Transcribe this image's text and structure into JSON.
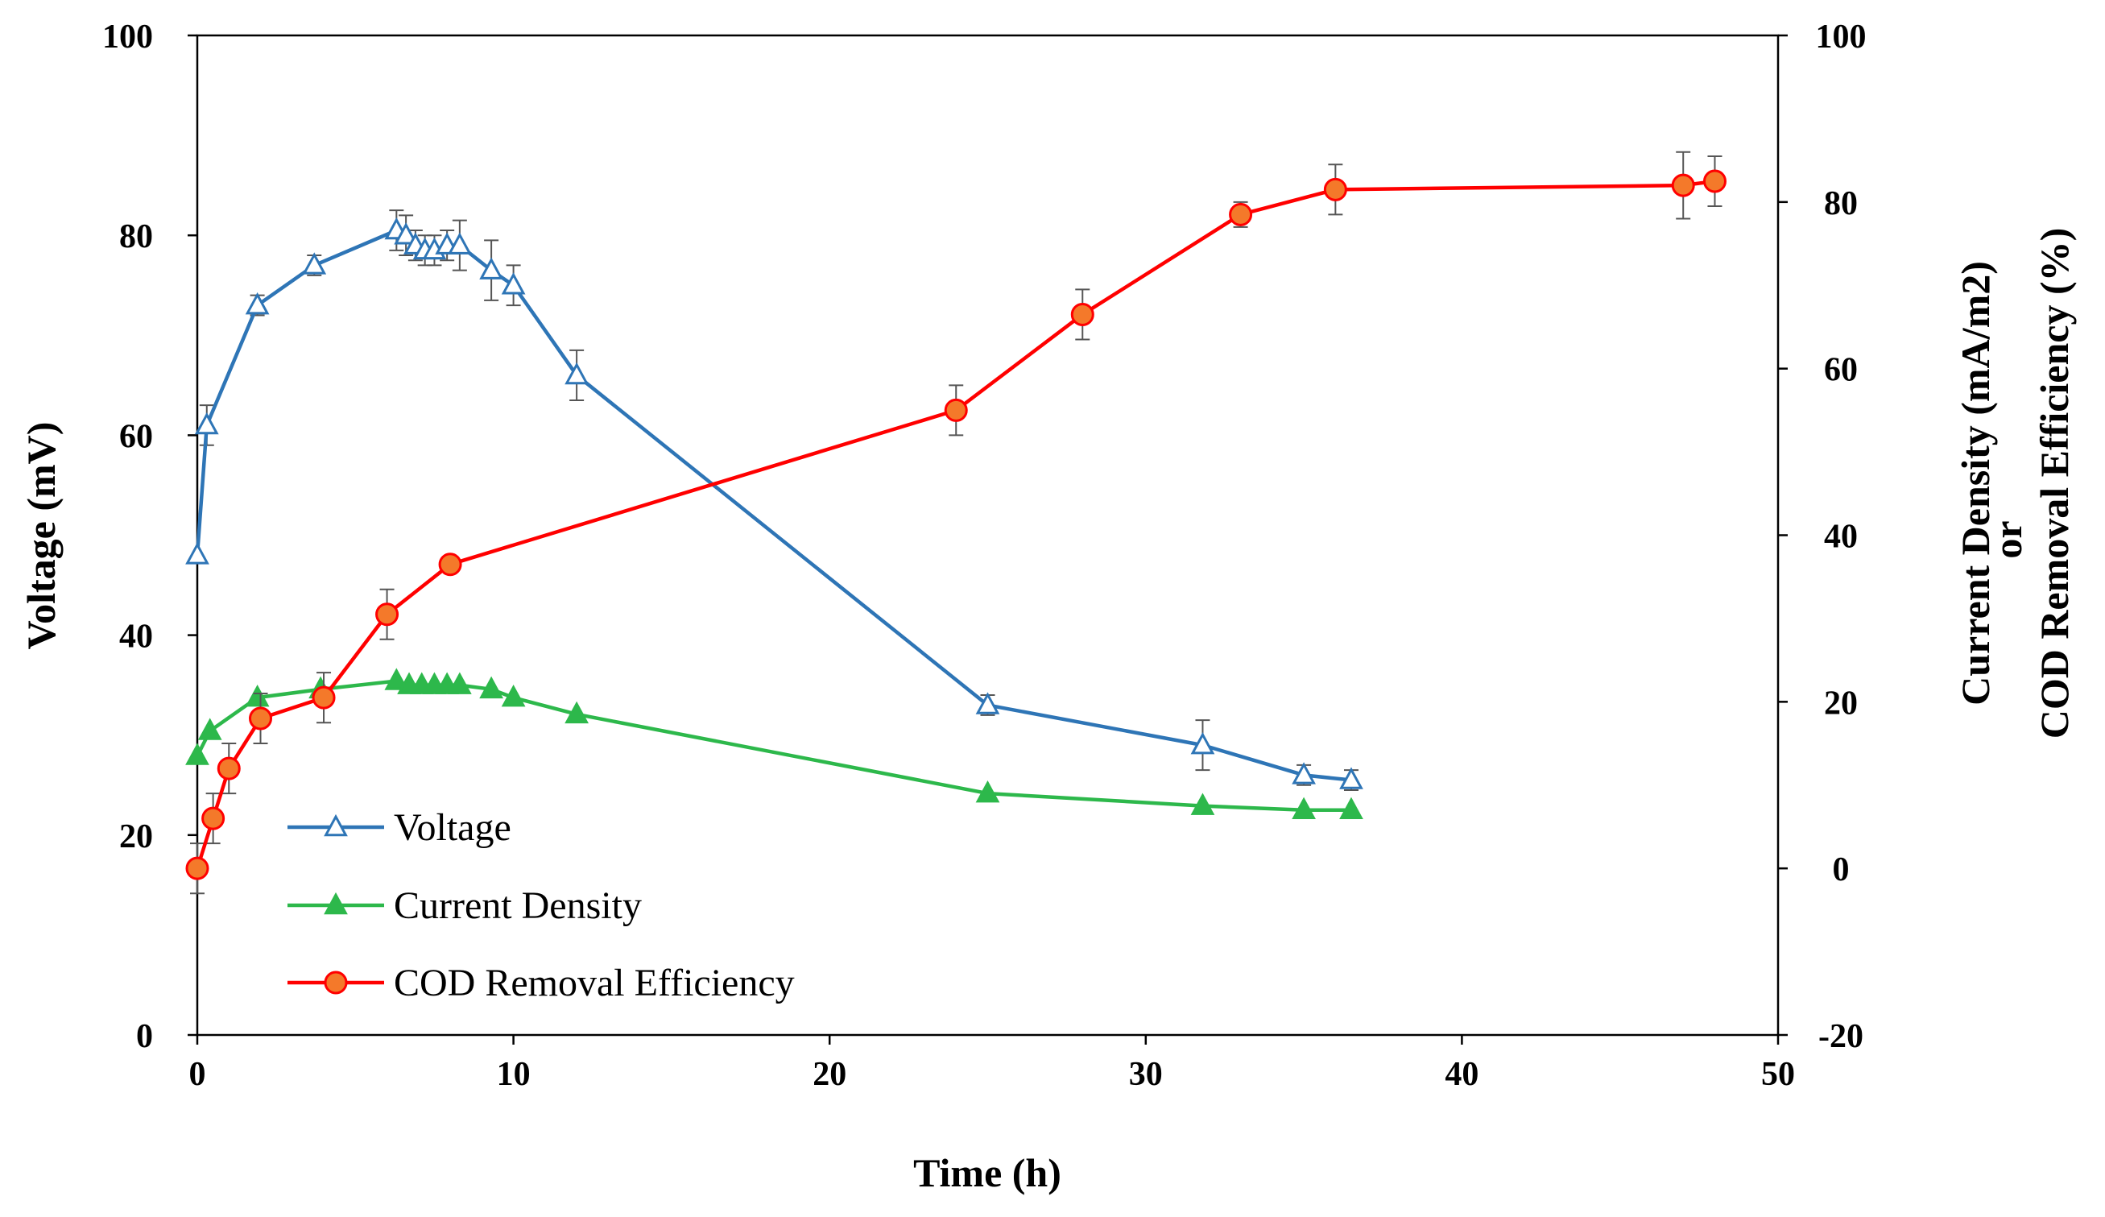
{
  "chart_data": {
    "type": "line",
    "xlabel": "Time (h)",
    "ylabel_left": "Voltage (mV)",
    "ylabel_right_line1": "Current Density (mA/m2)",
    "ylabel_right_line2": "or",
    "ylabel_right_line3": "COD Removal Efficiency (%)",
    "xlim": [
      0,
      50
    ],
    "ylim_left": [
      0,
      100
    ],
    "ylim_right": [
      -20,
      100
    ],
    "x_ticks": [
      0,
      10,
      20,
      30,
      40,
      50
    ],
    "y_left_ticks": [
      0,
      20,
      40,
      60,
      80,
      100
    ],
    "y_right_ticks": [
      -20,
      0,
      20,
      40,
      60,
      80,
      100
    ],
    "legend_position": "bottom-left",
    "series": [
      {
        "name": "Voltage",
        "axis": "left",
        "color": "#2E75B6",
        "marker": "triangle-open",
        "x": [
          0,
          0.3,
          1.9,
          3.7,
          6.3,
          6.6,
          6.9,
          7.2,
          7.5,
          7.9,
          8.3,
          9.3,
          10.0,
          12.0,
          25.0,
          31.8,
          35.0,
          36.5
        ],
        "y": [
          48,
          61,
          73,
          77,
          80.5,
          80,
          79,
          78.5,
          78.5,
          79,
          79,
          76.5,
          75,
          66,
          33,
          29,
          26,
          25.5
        ],
        "err": [
          0,
          2,
          1,
          1,
          2,
          2,
          1.5,
          1.5,
          1.5,
          1.5,
          2.5,
          3,
          2,
          2.5,
          1,
          2.5,
          1,
          1
        ]
      },
      {
        "name": "Current Density",
        "axis": "right",
        "color": "#2DB84B",
        "marker": "triangle-filled",
        "x": [
          0,
          0.4,
          1.9,
          3.9,
          6.3,
          6.7,
          7.1,
          7.5,
          7.9,
          8.3,
          9.3,
          10.0,
          12.0,
          25.0,
          31.8,
          35.0,
          36.5
        ],
        "y": [
          13.5,
          16.5,
          20.5,
          21.5,
          22.5,
          22,
          22,
          22,
          22,
          22,
          21.5,
          20.5,
          18.5,
          9,
          7.5,
          7,
          7
        ],
        "err": [
          0,
          0,
          0,
          0,
          0,
          0,
          0,
          0,
          0,
          0,
          0,
          0,
          0,
          0,
          0,
          0,
          0
        ]
      },
      {
        "name": "COD Removal Efficiency",
        "axis": "right",
        "color": "#FF0000",
        "marker": "circle-filled-orange",
        "x": [
          0,
          0.5,
          1.0,
          2.0,
          4.0,
          6.0,
          8.0,
          24.0,
          28.0,
          33.0,
          36.0,
          47.0,
          48.0
        ],
        "y": [
          0,
          6,
          12,
          18,
          20.5,
          30.5,
          36.5,
          55,
          66.5,
          78.5,
          81.5,
          82,
          82.5
        ],
        "err": [
          3,
          3,
          3,
          3,
          3,
          3,
          0,
          3,
          3,
          1.5,
          3,
          4,
          3
        ]
      }
    ]
  }
}
